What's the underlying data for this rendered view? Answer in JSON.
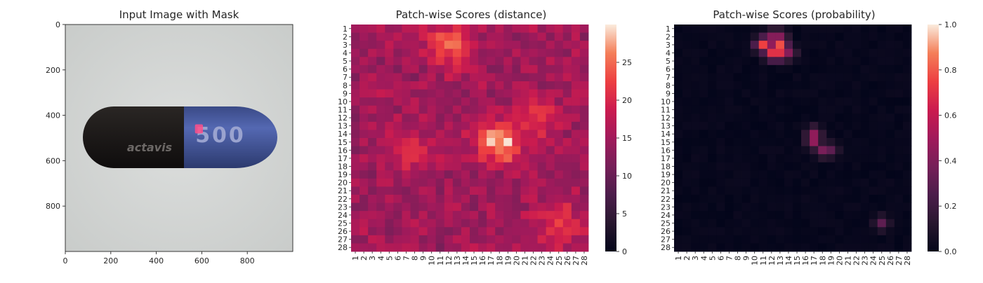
{
  "figure": {
    "panels": [
      {
        "title": "Input Image with Mask"
      },
      {
        "title": "Patch-wise Scores (distance)"
      },
      {
        "title": "Patch-wise Scores (probability)"
      }
    ]
  },
  "image_panel": {
    "pill_text": "actavis",
    "pill_number": "500",
    "colors": {
      "background": "#d4d6d6",
      "cap_dark": "#1b1918",
      "body_blue": "#4d62ac",
      "mask": "#ff4f8a"
    }
  },
  "chart_data": [
    {
      "type": "image",
      "title": "Input Image with Mask",
      "xlim": [
        0,
        1000
      ],
      "ylim": [
        1000,
        0
      ],
      "xticks": [
        0,
        200,
        400,
        600,
        800
      ],
      "yticks": [
        0,
        200,
        400,
        600,
        800
      ],
      "mask_region": {
        "x": [
          570,
          605
        ],
        "y": [
          440,
          480
        ]
      }
    },
    {
      "type": "heatmap",
      "title": "Patch-wise Scores (distance)",
      "rows": 28,
      "cols": 28,
      "row_labels": [
        "1",
        "2",
        "3",
        "4",
        "5",
        "6",
        "7",
        "8",
        "9",
        "10",
        "11",
        "12",
        "13",
        "14",
        "15",
        "16",
        "17",
        "18",
        "19",
        "20",
        "21",
        "22",
        "23",
        "24",
        "25",
        "26",
        "27",
        "28"
      ],
      "col_labels": [
        "1",
        "2",
        "3",
        "4",
        "5",
        "6",
        "7",
        "8",
        "9",
        "10",
        "11",
        "12",
        "13",
        "14",
        "15",
        "16",
        "17",
        "18",
        "19",
        "20",
        "21",
        "22",
        "23",
        "24",
        "25",
        "26",
        "27",
        "28"
      ],
      "colormap": "rocket",
      "vmin": 0,
      "vmax": 30,
      "colorbar_ticks": [
        0,
        5,
        10,
        15,
        20,
        25
      ],
      "base_value": 15,
      "hotspots": [
        {
          "row": 3,
          "col": 12,
          "value": 24
        },
        {
          "row": 15,
          "col": 18,
          "value": 29
        },
        {
          "row": 16,
          "col": 7,
          "value": 21
        },
        {
          "row": 25,
          "col": 25,
          "value": 22
        },
        {
          "row": 12,
          "col": 23,
          "value": 20
        }
      ]
    },
    {
      "type": "heatmap",
      "title": "Patch-wise Scores (probability)",
      "rows": 28,
      "cols": 28,
      "row_labels": [
        "1",
        "2",
        "3",
        "4",
        "5",
        "6",
        "7",
        "8",
        "9",
        "10",
        "11",
        "12",
        "13",
        "14",
        "15",
        "16",
        "17",
        "18",
        "19",
        "20",
        "21",
        "22",
        "23",
        "24",
        "25",
        "26",
        "27",
        "28"
      ],
      "col_labels": [
        "1",
        "2",
        "3",
        "4",
        "5",
        "6",
        "7",
        "8",
        "9",
        "10",
        "11",
        "12",
        "13",
        "14",
        "15",
        "16",
        "17",
        "18",
        "19",
        "20",
        "21",
        "22",
        "23",
        "24",
        "25",
        "26",
        "27",
        "28"
      ],
      "colormap": "rocket",
      "vmin": 0,
      "vmax": 1,
      "colorbar_ticks": [
        0.0,
        0.2,
        0.4,
        0.6,
        0.8,
        1.0
      ],
      "hotspots": [
        {
          "row": 3,
          "col": 11,
          "value": 0.75
        },
        {
          "row": 3,
          "col": 12,
          "value": 0.45
        },
        {
          "row": 3,
          "col": 13,
          "value": 0.78
        },
        {
          "row": 4,
          "col": 12,
          "value": 0.7
        },
        {
          "row": 4,
          "col": 13,
          "value": 0.7
        },
        {
          "row": 4,
          "col": 14,
          "value": 0.42
        },
        {
          "row": 2,
          "col": 12,
          "value": 0.42
        },
        {
          "row": 2,
          "col": 13,
          "value": 0.42
        },
        {
          "row": 14,
          "col": 17,
          "value": 0.45
        },
        {
          "row": 15,
          "col": 17,
          "value": 0.45
        },
        {
          "row": 16,
          "col": 18,
          "value": 0.38
        },
        {
          "row": 16,
          "col": 19,
          "value": 0.3
        },
        {
          "row": 25,
          "col": 25,
          "value": 0.3
        }
      ]
    }
  ]
}
